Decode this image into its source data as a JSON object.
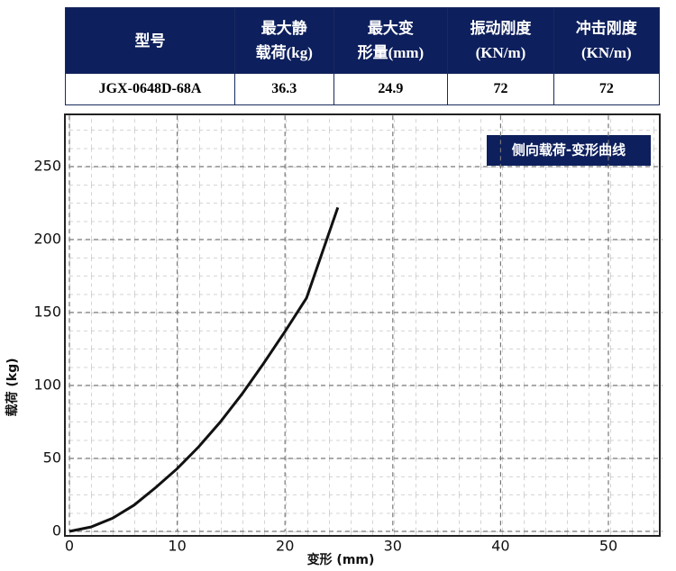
{
  "table": {
    "header": [
      "型号",
      "最大静\n载荷(kg)",
      "最大变\n形量(mm)",
      "振动刚度\n(KN/m)",
      "冲击刚度\n(KN/m)"
    ],
    "rows": [
      [
        "JGX-0648D-68A",
        "36.3",
        "24.9",
        "72",
        "72"
      ]
    ]
  },
  "chart_data": {
    "type": "line",
    "title": "侧向载荷-变形曲线",
    "x_label": "变形 (mm)",
    "y_label": "载荷 (kg)",
    "x": [
      0,
      2,
      4,
      6,
      8,
      10,
      12,
      14,
      16,
      18,
      20,
      22,
      24.9
    ],
    "series": [
      {
        "name": "侧向载荷-变形曲线",
        "color": "#111111",
        "values": [
          0,
          3,
          9,
          18,
          30,
          43,
          58,
          75,
          94,
          115,
          137,
          160,
          222
        ]
      }
    ],
    "xlim": [
      0,
      55
    ],
    "ylim": [
      0,
      285
    ],
    "xticks": [
      0,
      10,
      20,
      30,
      40,
      50
    ],
    "yticks": [
      0,
      50,
      100,
      150,
      200,
      250
    ],
    "grid": true
  }
}
